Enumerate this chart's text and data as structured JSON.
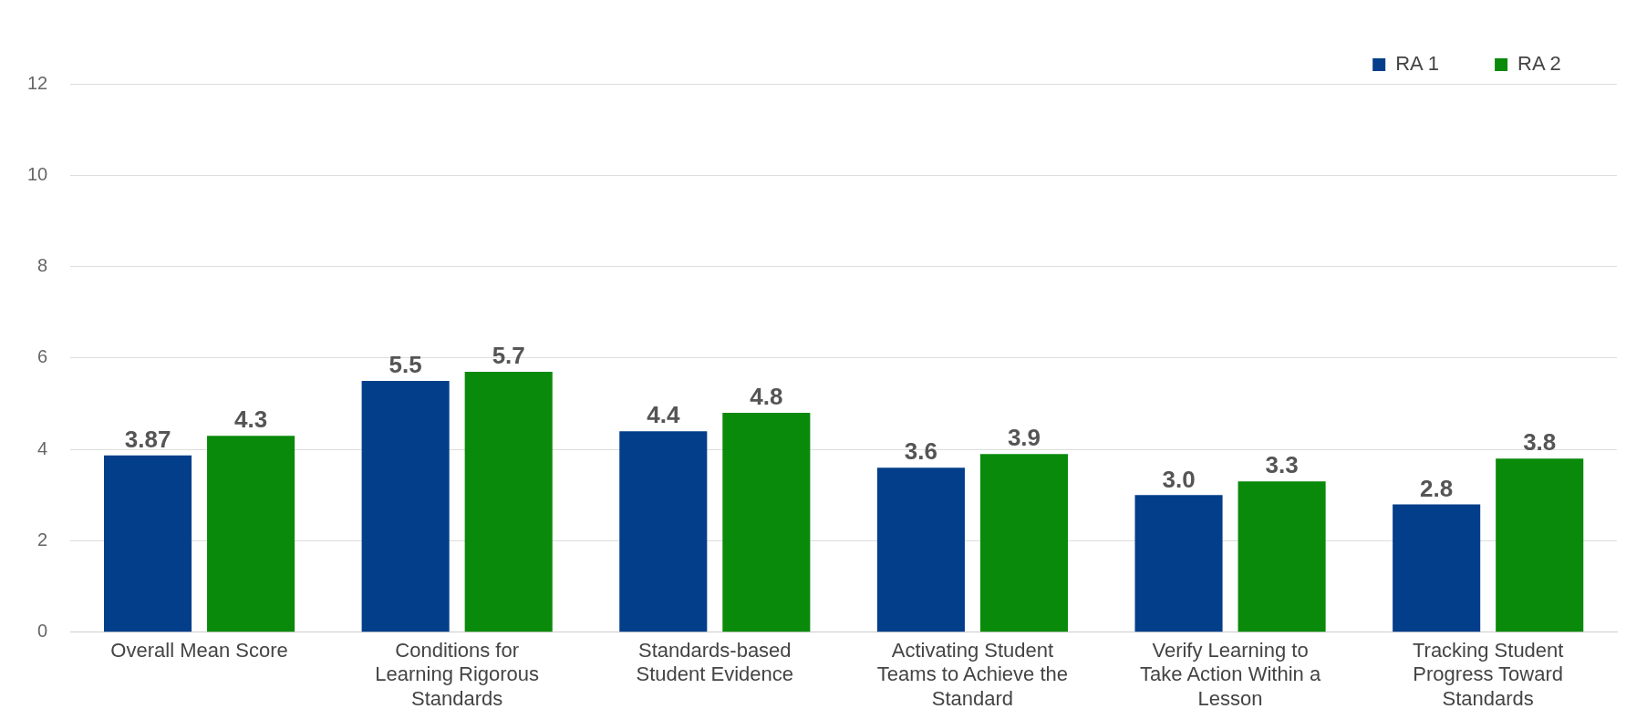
{
  "chart_data": {
    "type": "bar",
    "categories": [
      "Overall Mean Score",
      "Conditions for Learning Rigorous Standards",
      "Standards-based Student Evidence",
      "Activating Student Teams to Achieve the Standard",
      "Verify Learning to Take Action Within a Lesson",
      "Tracking Student Progress Toward Standards"
    ],
    "series": [
      {
        "name": "RA 1",
        "color": "#023e8a",
        "values": [
          3.87,
          5.5,
          4.4,
          3.6,
          3.0,
          2.8
        ],
        "value_labels": [
          "3.87",
          "5.5",
          "4.4",
          "3.6",
          "3.0",
          "2.8"
        ]
      },
      {
        "name": "RA 2",
        "color": "#0a8a0a",
        "values": [
          4.3,
          5.7,
          4.8,
          3.9,
          3.3,
          3.8
        ],
        "value_labels": [
          "4.3",
          "5.7",
          "4.8",
          "3.9",
          "3.3",
          "3.8"
        ]
      }
    ],
    "ylim": [
      0,
      12
    ],
    "yticks": [
      0,
      2,
      4,
      6,
      8,
      10,
      12
    ],
    "grid": "y",
    "legend": "top right"
  }
}
